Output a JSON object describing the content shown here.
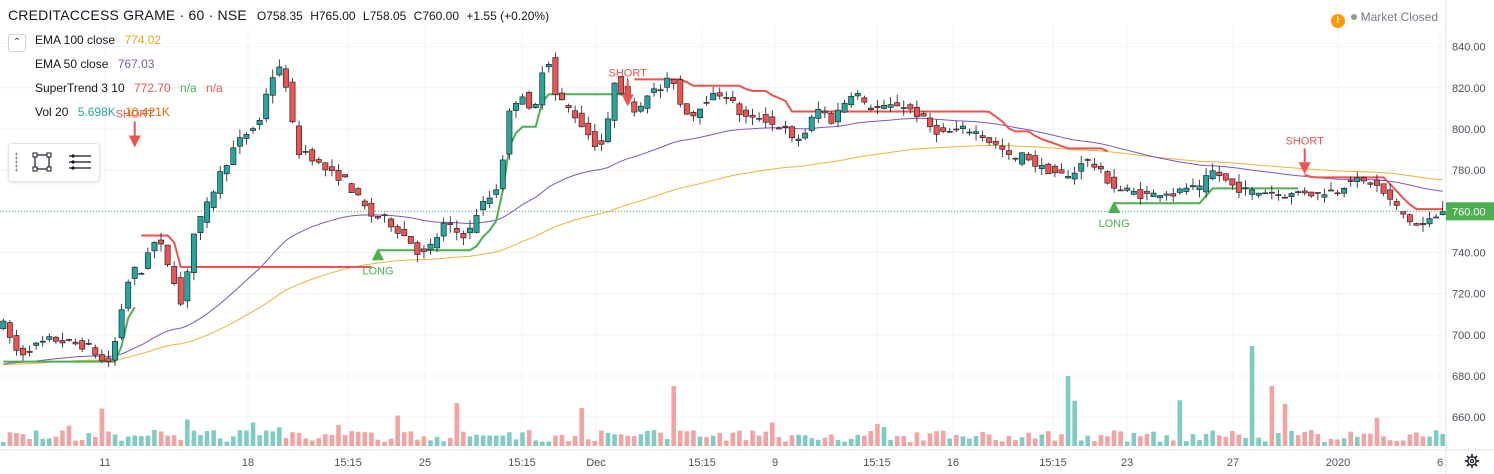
{
  "header": {
    "symbol": "CREDITACCESS GRAME · 60 · NSE",
    "open": "O758.35",
    "high": "H765.00",
    "low": "L758.05",
    "close": "C760.00",
    "change": "+1.55 (+0.20%)"
  },
  "indicators": [
    {
      "label": "EMA 100 close",
      "value": "774.02",
      "value2": "",
      "color": "#f2a21a"
    },
    {
      "label": "EMA 50 close",
      "value": "767.03",
      "value2": "",
      "color": "#7e57c2"
    },
    {
      "label": "SuperTrend 3 10",
      "value": "772.70",
      "value2": "n/a",
      "value3": "n/a",
      "color": "#ef5350",
      "color2": "#4caf50"
    },
    {
      "label": "Vol 20",
      "value": "5.698K",
      "value2": "10.421K",
      "color": "#26a69a",
      "color2": "#ef6c00"
    }
  ],
  "market_status": "Market Closed",
  "colors": {
    "up": "#26a69a",
    "down": "#ef5350",
    "ema100": "#f2b03a",
    "ema50": "#7e57c2",
    "st_up": "#4caf50",
    "st_down": "#ef5350",
    "vol_up": "#80cbc4",
    "vol_down": "#f4a3a3",
    "price_tag": "#4caf50",
    "price_tag_text": "#ffffff",
    "grid": "#f0f3fa",
    "axis_text": "#4c525e"
  },
  "chart_data": {
    "type": "candlestick",
    "title": "CREDITACCESS GRAME · 60 · NSE",
    "y_ticks": [
      "840.00",
      "820.00",
      "800.00",
      "780.00",
      "760.00",
      "740.00",
      "720.00",
      "700.00",
      "680.00",
      "660.00"
    ],
    "y_range": [
      646,
      850
    ],
    "x_ticks": [
      "11",
      "18",
      "15:15",
      "25",
      "15:15",
      "Dec",
      "15:15",
      "9",
      "15:15",
      "16",
      "15:15",
      "23",
      "27",
      "2020",
      "6"
    ],
    "last_price": "760.00",
    "last_price_value": 760.0,
    "n_bars": 220,
    "anchors": [
      [
        0,
        705
      ],
      [
        8,
        690
      ],
      [
        15,
        694
      ],
      [
        25,
        698
      ],
      [
        35,
        696
      ],
      [
        45,
        694
      ],
      [
        52,
        686
      ],
      [
        56,
        688
      ],
      [
        60,
        708
      ],
      [
        66,
        732
      ],
      [
        72,
        730
      ],
      [
        75,
        742
      ],
      [
        80,
        746
      ],
      [
        88,
        728
      ],
      [
        92,
        714
      ],
      [
        98,
        748
      ],
      [
        105,
        762
      ],
      [
        112,
        778
      ],
      [
        120,
        792
      ],
      [
        128,
        800
      ],
      [
        132,
        802
      ],
      [
        137,
        822
      ],
      [
        142,
        830
      ],
      [
        146,
        822
      ],
      [
        148,
        815
      ],
      [
        150,
        797
      ],
      [
        152,
        788
      ],
      [
        154,
        790
      ],
      [
        158,
        788
      ],
      [
        164,
        782
      ],
      [
        170,
        778
      ],
      [
        176,
        776
      ],
      [
        182,
        768
      ],
      [
        190,
        758
      ],
      [
        198,
        756
      ],
      [
        205,
        750
      ],
      [
        210,
        746
      ],
      [
        216,
        738
      ],
      [
        222,
        744
      ],
      [
        228,
        754
      ],
      [
        234,
        750
      ],
      [
        240,
        748
      ],
      [
        245,
        760
      ],
      [
        250,
        766
      ],
      [
        254,
        768
      ],
      [
        258,
        785
      ],
      [
        262,
        810
      ],
      [
        268,
        818
      ],
      [
        272,
        808
      ],
      [
        276,
        812
      ],
      [
        279,
        832
      ],
      [
        281,
        840
      ],
      [
        284,
        818
      ],
      [
        290,
        812
      ],
      [
        296,
        806
      ],
      [
        302,
        798
      ],
      [
        308,
        790
      ],
      [
        312,
        800
      ],
      [
        316,
        824
      ],
      [
        320,
        818
      ],
      [
        326,
        810
      ],
      [
        330,
        812
      ],
      [
        334,
        820
      ],
      [
        338,
        817
      ],
      [
        342,
        822
      ],
      [
        346,
        825
      ],
      [
        350,
        812
      ],
      [
        356,
        806
      ],
      [
        362,
        814
      ],
      [
        368,
        816
      ],
      [
        372,
        818
      ],
      [
        376,
        814
      ],
      [
        380,
        808
      ],
      [
        386,
        804
      ],
      [
        392,
        806
      ],
      [
        398,
        802
      ],
      [
        404,
        800
      ],
      [
        408,
        794
      ],
      [
        412,
        796
      ],
      [
        416,
        800
      ],
      [
        420,
        810
      ],
      [
        424,
        808
      ],
      [
        428,
        804
      ],
      [
        434,
        812
      ],
      [
        440,
        820
      ],
      [
        444,
        812
      ],
      [
        450,
        810
      ],
      [
        456,
        810
      ],
      [
        462,
        812
      ],
      [
        468,
        810
      ],
      [
        474,
        806
      ],
      [
        480,
        800
      ],
      [
        486,
        798
      ],
      [
        492,
        799
      ],
      [
        498,
        800
      ],
      [
        504,
        798
      ],
      [
        510,
        794
      ],
      [
        516,
        790
      ],
      [
        522,
        784
      ],
      [
        528,
        788
      ],
      [
        534,
        782
      ],
      [
        540,
        780
      ],
      [
        546,
        778
      ],
      [
        552,
        776
      ],
      [
        558,
        786
      ],
      [
        564,
        782
      ],
      [
        570,
        776
      ],
      [
        576,
        770
      ],
      [
        582,
        770
      ],
      [
        588,
        768
      ],
      [
        594,
        768
      ],
      [
        600,
        770
      ],
      [
        606,
        768
      ],
      [
        612,
        772
      ],
      [
        618,
        770
      ],
      [
        622,
        776
      ],
      [
        626,
        780
      ],
      [
        630,
        776
      ],
      [
        636,
        772
      ],
      [
        642,
        770
      ],
      [
        648,
        769
      ],
      [
        654,
        770
      ],
      [
        660,
        768
      ],
      [
        666,
        768
      ],
      [
        672,
        770
      ],
      [
        678,
        768
      ],
      [
        684,
        770
      ],
      [
        690,
        770
      ],
      [
        696,
        776
      ],
      [
        702,
        774
      ],
      [
        708,
        774
      ],
      [
        714,
        768
      ],
      [
        720,
        762
      ],
      [
        726,
        756
      ],
      [
        732,
        752
      ],
      [
        738,
        756
      ],
      [
        744,
        760
      ]
    ],
    "volume": {
      "unit": "K",
      "scale_note": "Vol 20"
    },
    "signals": [
      {
        "label": "SHORT",
        "type": "short",
        "bar": 68,
        "value": 790
      },
      {
        "label": "LONG",
        "type": "long",
        "bar": 193,
        "value": 743
      },
      {
        "label": "SHORT",
        "type": "short",
        "bar": 323,
        "value": 810
      },
      {
        "label": "LONG",
        "type": "long",
        "bar": 573,
        "value": 766
      },
      {
        "label": "SHORT",
        "type": "short",
        "bar": 671,
        "value": 777
      }
    ],
    "series": [
      {
        "name": "EMA 100 close"
      },
      {
        "name": "EMA 50 close"
      },
      {
        "name": "SuperTrend 3 10"
      },
      {
        "name": "Vol 20"
      }
    ],
    "grid": true,
    "legend": "top-left"
  }
}
